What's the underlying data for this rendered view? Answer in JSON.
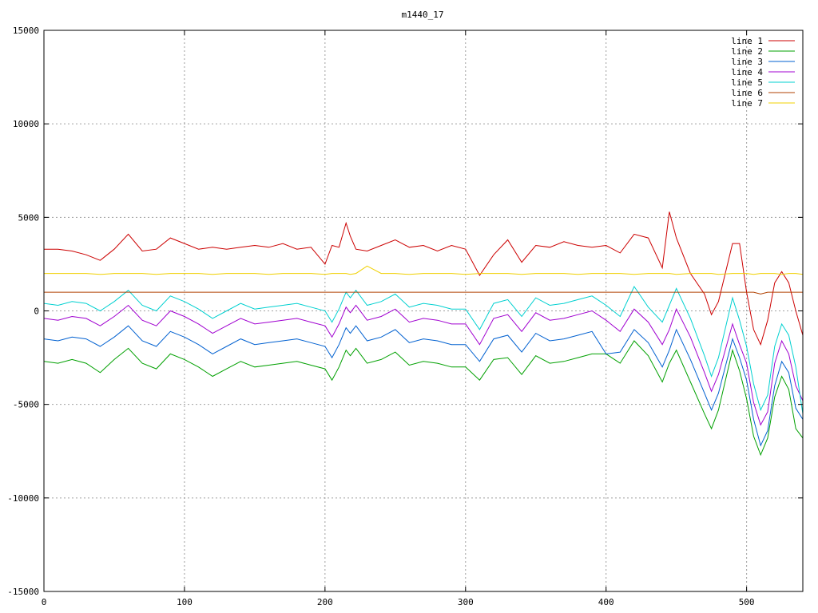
{
  "chart_data": {
    "type": "line",
    "title": "m1440_17",
    "xlabel": "",
    "ylabel": "",
    "xlim": [
      0,
      540
    ],
    "ylim": [
      -15000,
      15000
    ],
    "x_ticks": [
      0,
      100,
      200,
      300,
      400,
      500
    ],
    "y_ticks": [
      -15000,
      -10000,
      -5000,
      0,
      5000,
      10000,
      15000
    ],
    "grid": true,
    "legend_position": "top-right",
    "x": [
      0,
      10,
      20,
      30,
      40,
      50,
      60,
      70,
      80,
      90,
      100,
      110,
      120,
      130,
      140,
      150,
      160,
      170,
      180,
      190,
      200,
      205,
      210,
      215,
      218,
      222,
      230,
      240,
      250,
      260,
      270,
      280,
      290,
      300,
      310,
      320,
      330,
      340,
      350,
      360,
      370,
      380,
      390,
      400,
      410,
      420,
      430,
      440,
      445,
      450,
      460,
      470,
      475,
      480,
      490,
      495,
      500,
      505,
      510,
      515,
      520,
      525,
      530,
      535,
      540
    ],
    "series": [
      {
        "name": "line 1",
        "color": "#cc0000",
        "values": [
          3300,
          3300,
          3200,
          3000,
          2700,
          3300,
          4100,
          3200,
          3300,
          3900,
          3600,
          3300,
          3400,
          3300,
          3400,
          3500,
          3400,
          3600,
          3300,
          3400,
          2500,
          3500,
          3400,
          4700,
          4000,
          3300,
          3200,
          3500,
          3800,
          3400,
          3500,
          3200,
          3500,
          3300,
          1900,
          3000,
          3800,
          2600,
          3500,
          3400,
          3700,
          3500,
          3400,
          3500,
          3100,
          4100,
          3900,
          2300,
          5300,
          3900,
          2000,
          900,
          -200,
          500,
          3600,
          3600,
          1000,
          -1000,
          -1800,
          -500,
          1500,
          2100,
          1500,
          0,
          -1300
        ]
      },
      {
        "name": "line 2",
        "color": "#00a000",
        "values": [
          -2700,
          -2800,
          -2600,
          -2800,
          -3300,
          -2600,
          -2000,
          -2800,
          -3100,
          -2300,
          -2600,
          -3000,
          -3500,
          -3100,
          -2700,
          -3000,
          -2900,
          -2800,
          -2700,
          -2900,
          -3100,
          -3700,
          -3000,
          -2100,
          -2400,
          -2000,
          -2800,
          -2600,
          -2200,
          -2900,
          -2700,
          -2800,
          -3000,
          -3000,
          -3700,
          -2600,
          -2500,
          -3400,
          -2400,
          -2800,
          -2700,
          -2500,
          -2300,
          -2300,
          -2800,
          -1600,
          -2400,
          -3800,
          -2800,
          -2100,
          -3800,
          -5500,
          -6300,
          -5300,
          -2100,
          -3200,
          -4700,
          -6700,
          -7700,
          -6800,
          -4600,
          -3500,
          -4200,
          -6300,
          -6800
        ]
      },
      {
        "name": "line 3",
        "color": "#0060d0",
        "values": [
          -1500,
          -1600,
          -1400,
          -1500,
          -1900,
          -1400,
          -800,
          -1600,
          -1900,
          -1100,
          -1400,
          -1800,
          -2300,
          -1900,
          -1500,
          -1800,
          -1700,
          -1600,
          -1500,
          -1700,
          -1900,
          -2500,
          -1800,
          -900,
          -1200,
          -800,
          -1600,
          -1400,
          -1000,
          -1700,
          -1500,
          -1600,
          -1800,
          -1800,
          -2700,
          -1500,
          -1300,
          -2200,
          -1200,
          -1600,
          -1500,
          -1300,
          -1100,
          -2300,
          -2200,
          -1000,
          -1700,
          -3000,
          -2100,
          -1000,
          -2600,
          -4400,
          -5300,
          -4400,
          -1500,
          -2500,
          -3700,
          -5800,
          -7200,
          -6400,
          -4000,
          -2700,
          -3300,
          -5200,
          -5800
        ]
      },
      {
        "name": "line 4",
        "color": "#a000d0",
        "values": [
          -400,
          -500,
          -300,
          -400,
          -800,
          -300,
          300,
          -500,
          -800,
          0,
          -300,
          -700,
          -1200,
          -800,
          -400,
          -700,
          -600,
          -500,
          -400,
          -600,
          -800,
          -1400,
          -700,
          200,
          -100,
          300,
          -500,
          -300,
          100,
          -600,
          -400,
          -500,
          -700,
          -700,
          -1800,
          -400,
          -200,
          -1100,
          -100,
          -500,
          -400,
          -200,
          0,
          -500,
          -1100,
          100,
          -600,
          -1800,
          -1000,
          100,
          -1400,
          -3300,
          -4300,
          -3400,
          -700,
          -1800,
          -2800,
          -4900,
          -6100,
          -5400,
          -2800,
          -1600,
          -2300,
          -4000,
          -4800
        ]
      },
      {
        "name": "line 5",
        "color": "#00d0d0",
        "values": [
          400,
          300,
          500,
          400,
          0,
          500,
          1100,
          300,
          0,
          800,
          500,
          100,
          -400,
          0,
          400,
          100,
          200,
          300,
          400,
          200,
          0,
          -600,
          100,
          1000,
          700,
          1100,
          300,
          500,
          900,
          200,
          400,
          300,
          100,
          100,
          -1000,
          400,
          600,
          -300,
          700,
          300,
          400,
          600,
          800,
          300,
          -300,
          1300,
          200,
          -600,
          300,
          1200,
          -400,
          -2400,
          -3500,
          -2500,
          700,
          -500,
          -1900,
          -3900,
          -5300,
          -4500,
          -1900,
          -700,
          -1300,
          -3000,
          -5500
        ]
      },
      {
        "name": "line 6",
        "color": "#b04000",
        "values": [
          1000,
          1000,
          1000,
          1000,
          1000,
          1000,
          1000,
          1000,
          1000,
          1000,
          1000,
          1000,
          1000,
          1000,
          1000,
          1000,
          1000,
          1000,
          1000,
          1000,
          1000,
          1000,
          1000,
          1000,
          1000,
          1000,
          1000,
          1000,
          1000,
          1000,
          1000,
          1000,
          1000,
          1000,
          1000,
          1000,
          1000,
          1000,
          1000,
          1000,
          1000,
          1000,
          1000,
          1000,
          1000,
          1000,
          1000,
          1000,
          1000,
          1000,
          1000,
          1000,
          1000,
          1000,
          1000,
          1000,
          1000,
          1000,
          900,
          1000,
          1000,
          1000,
          1000,
          1000,
          1000
        ]
      },
      {
        "name": "line 7",
        "color": "#f0d000",
        "values": [
          2000,
          2000,
          2000,
          2000,
          1950,
          2000,
          2000,
          2000,
          1950,
          2000,
          2000,
          2000,
          1950,
          2000,
          2000,
          2000,
          1950,
          2000,
          2000,
          2000,
          1950,
          2000,
          2000,
          2000,
          1950,
          2000,
          2400,
          2000,
          2000,
          1950,
          2000,
          2000,
          2000,
          1950,
          2000,
          2000,
          2000,
          1950,
          2000,
          2000,
          2000,
          1950,
          2000,
          2000,
          2000,
          1950,
          2000,
          2000,
          2000,
          1950,
          2000,
          2000,
          2000,
          1950,
          2000,
          2000,
          2000,
          1950,
          2000,
          2000,
          2000,
          1950,
          2000,
          2000,
          1950
        ]
      }
    ]
  }
}
